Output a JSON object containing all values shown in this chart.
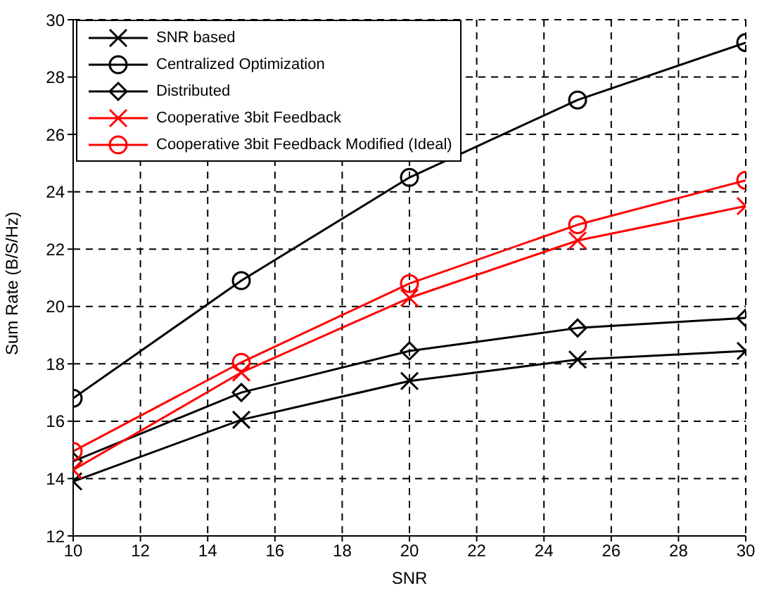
{
  "chart_data": {
    "type": "line",
    "xlabel": "SNR",
    "ylabel": "Sum Rate (B/S/Hz)",
    "x": [
      10,
      15,
      20,
      25,
      30
    ],
    "series": [
      {
        "name": "SNR based",
        "color": "#000000",
        "marker": "cross",
        "values": [
          13.9,
          16.05,
          17.4,
          18.15,
          18.45
        ]
      },
      {
        "name": "Centralized Optimization",
        "color": "#000000",
        "marker": "circle",
        "values": [
          16.8,
          20.9,
          24.5,
          27.2,
          29.2
        ]
      },
      {
        "name": "Distributed",
        "color": "#000000",
        "marker": "diamond",
        "values": [
          14.6,
          17.0,
          18.45,
          19.25,
          19.6
        ]
      },
      {
        "name": "Cooperative 3bit Feedback",
        "color": "#ff0000",
        "marker": "cross",
        "values": [
          14.3,
          17.7,
          20.3,
          22.3,
          23.5
        ]
      },
      {
        "name": "Cooperative 3bit Feedback Modified (Ideal)",
        "color": "#ff0000",
        "marker": "circle",
        "values": [
          14.95,
          18.05,
          20.8,
          22.85,
          24.4
        ]
      }
    ],
    "xlim": [
      10,
      30
    ],
    "xticks": [
      10,
      12,
      14,
      16,
      18,
      20,
      22,
      24,
      26,
      28,
      30
    ],
    "ylim": [
      12,
      30
    ],
    "yticks": [
      12,
      14,
      16,
      18,
      20,
      22,
      24,
      26,
      28,
      30
    ],
    "grid": true,
    "legend": "top left",
    "line_style": "solid"
  }
}
